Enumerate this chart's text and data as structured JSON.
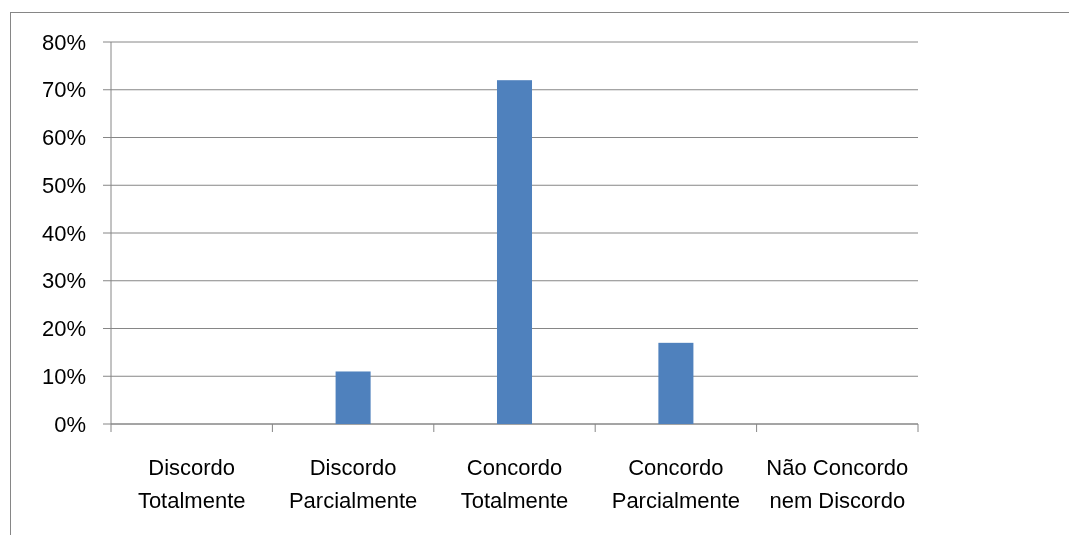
{
  "chart_data": {
    "type": "bar",
    "categories": [
      "Discordo Totalmente",
      "Discordo Parcialmente",
      "Concordo Totalmente",
      "Concordo Parcialmente",
      "Não Concordo nem Discordo"
    ],
    "values": [
      0,
      11,
      72,
      17,
      0
    ],
    "color": "#4f81bd",
    "ylim": [
      0,
      80
    ],
    "yticks": [
      {
        "value": 0,
        "label": "0%"
      },
      {
        "value": 10,
        "label": "10%"
      },
      {
        "value": 20,
        "label": "20%"
      },
      {
        "value": 30,
        "label": "30%"
      },
      {
        "value": 40,
        "label": "40%"
      },
      {
        "value": 50,
        "label": "50%"
      },
      {
        "value": 60,
        "label": "60%"
      },
      {
        "value": 70,
        "label": "70%"
      },
      {
        "value": 80,
        "label": "80%"
      }
    ],
    "grid": "y"
  }
}
